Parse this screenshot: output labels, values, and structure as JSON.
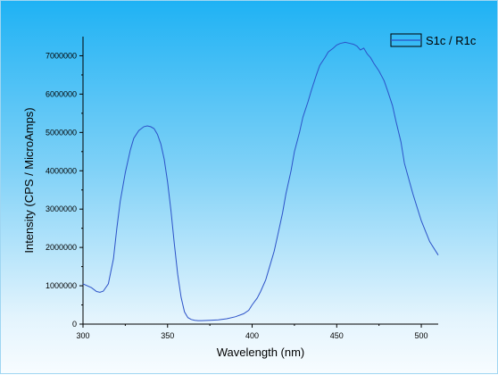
{
  "chart_data": {
    "type": "line",
    "xlabel": "Wavelength (nm)",
    "ylabel": "Intensity (CPS / MicroAmps)",
    "xlim": [
      300,
      510
    ],
    "ylim": [
      0,
      7500000
    ],
    "x_ticks": [
      300,
      350,
      400,
      450,
      500
    ],
    "y_ticks": [
      0,
      1000000,
      2000000,
      3000000,
      4000000,
      5000000,
      6000000,
      7000000
    ],
    "legend_position": "top-right",
    "grid": false,
    "series": [
      {
        "name": "S1c / R1c",
        "color": "#2c52c8",
        "x": [
          300,
          305,
          308,
          310,
          312,
          315,
          318,
          320,
          322,
          325,
          328,
          330,
          333,
          336,
          338,
          340,
          342,
          344,
          346,
          348,
          350,
          352,
          354,
          356,
          358,
          360,
          362,
          364,
          366,
          368,
          370,
          375,
          380,
          385,
          390,
          395,
          398,
          400,
          403,
          405,
          408,
          410,
          413,
          415,
          418,
          420,
          423,
          425,
          428,
          430,
          433,
          435,
          438,
          440,
          443,
          445,
          448,
          450,
          452,
          455,
          458,
          460,
          462,
          464,
          466,
          468,
          470,
          472,
          475,
          478,
          480,
          483,
          485,
          488,
          490,
          495,
          500,
          505,
          510
        ],
        "y": [
          1050000,
          950000,
          850000,
          830000,
          860000,
          1050000,
          1700000,
          2500000,
          3200000,
          3950000,
          4550000,
          4850000,
          5050000,
          5150000,
          5170000,
          5150000,
          5100000,
          4950000,
          4700000,
          4300000,
          3700000,
          2950000,
          2100000,
          1300000,
          700000,
          320000,
          170000,
          120000,
          100000,
          90000,
          90000,
          100000,
          110000,
          140000,
          190000,
          270000,
          360000,
          500000,
          680000,
          850000,
          1150000,
          1450000,
          1900000,
          2300000,
          2900000,
          3400000,
          4000000,
          4500000,
          5000000,
          5400000,
          5800000,
          6100000,
          6500000,
          6750000,
          6950000,
          7100000,
          7200000,
          7280000,
          7320000,
          7350000,
          7320000,
          7300000,
          7250000,
          7150000,
          7200000,
          7050000,
          6950000,
          6800000,
          6600000,
          6350000,
          6100000,
          5700000,
          5300000,
          4750000,
          4200000,
          3400000,
          2700000,
          2150000,
          1800000
        ]
      }
    ]
  }
}
